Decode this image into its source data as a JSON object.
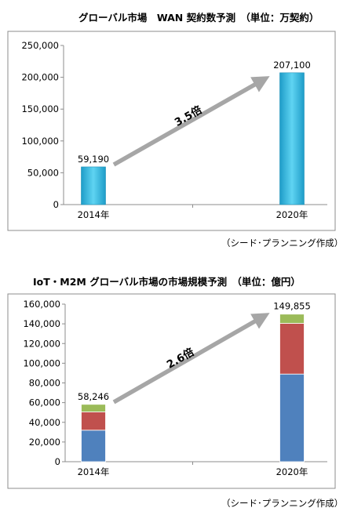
{
  "charts": [
    {
      "title": "グローバル市場　WAN 契約数予測　（単位：万契約）",
      "source": "（シード･プランニング作成）",
      "chart_data": {
        "type": "bar",
        "categories": [
          "2014年",
          "2020年"
        ],
        "values": [
          59190,
          207100
        ],
        "value_labels": [
          "59,190",
          "207,100"
        ],
        "ylim": [
          0,
          250000
        ],
        "yticks": [
          0,
          50000,
          100000,
          150000,
          200000,
          250000
        ],
        "ytick_labels": [
          "0",
          "50,000",
          "100,000",
          "150,000",
          "200,000",
          "250,000"
        ],
        "annotation": "3.5倍",
        "bar_color": "#29b6e0",
        "grid": false
      }
    },
    {
      "title": "IoT・M2M グローバル市場の市場規模予測　（単位：億円）",
      "source": "（シード･プランニング作成）",
      "chart_data": {
        "type": "stacked-bar",
        "categories": [
          "2014年",
          "2020年"
        ],
        "series": [
          {
            "values": [
              32000,
              89000
            ],
            "color": "#4f81bd"
          },
          {
            "values": [
              18500,
              51500
            ],
            "color": "#c0504d"
          },
          {
            "values": [
              7746,
              9355
            ],
            "color": "#9bbb59"
          }
        ],
        "totals": [
          58246,
          149855
        ],
        "total_labels": [
          "58,246",
          "149,855"
        ],
        "ylim": [
          0,
          160000
        ],
        "yticks": [
          0,
          20000,
          40000,
          60000,
          80000,
          100000,
          120000,
          140000,
          160000
        ],
        "ytick_labels": [
          "0",
          "20,000",
          "40,000",
          "60,000",
          "80,000",
          "100,000",
          "120,000",
          "140,000",
          "160,000"
        ],
        "annotation": "2.6倍",
        "grid": false
      }
    }
  ]
}
